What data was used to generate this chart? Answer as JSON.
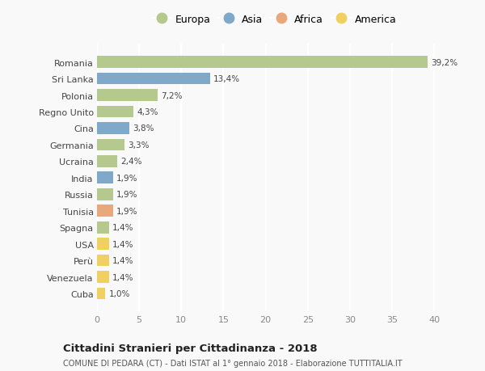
{
  "categories": [
    "Romania",
    "Sri Lanka",
    "Polonia",
    "Regno Unito",
    "Cina",
    "Germania",
    "Ucraina",
    "India",
    "Russia",
    "Tunisia",
    "Spagna",
    "USA",
    "Perù",
    "Venezuela",
    "Cuba"
  ],
  "values": [
    39.2,
    13.4,
    7.2,
    4.3,
    3.8,
    3.3,
    2.4,
    1.9,
    1.9,
    1.9,
    1.4,
    1.4,
    1.4,
    1.4,
    1.0
  ],
  "labels": [
    "39,2%",
    "13,4%",
    "7,2%",
    "4,3%",
    "3,8%",
    "3,3%",
    "2,4%",
    "1,9%",
    "1,9%",
    "1,9%",
    "1,4%",
    "1,4%",
    "1,4%",
    "1,4%",
    "1,0%"
  ],
  "continents": [
    "Europa",
    "Asia",
    "Europa",
    "Europa",
    "Asia",
    "Europa",
    "Europa",
    "Asia",
    "Europa",
    "Africa",
    "Europa",
    "America",
    "America",
    "America",
    "America"
  ],
  "continent_colors": {
    "Europa": "#b5c98e",
    "Asia": "#7fa8c9",
    "Africa": "#e8a87c",
    "America": "#f0d060"
  },
  "legend_order": [
    "Europa",
    "Asia",
    "Africa",
    "America"
  ],
  "title": "Cittadini Stranieri per Cittadinanza - 2018",
  "subtitle": "COMUNE DI PEDARA (CT) - Dati ISTAT al 1° gennaio 2018 - Elaborazione TUTTITALIA.IT",
  "xlim": [
    0,
    42
  ],
  "xticks": [
    0,
    5,
    10,
    15,
    20,
    25,
    30,
    35,
    40
  ],
  "background_color": "#f9f9f9",
  "grid_color": "#e8e8e8",
  "bar_height": 0.72
}
